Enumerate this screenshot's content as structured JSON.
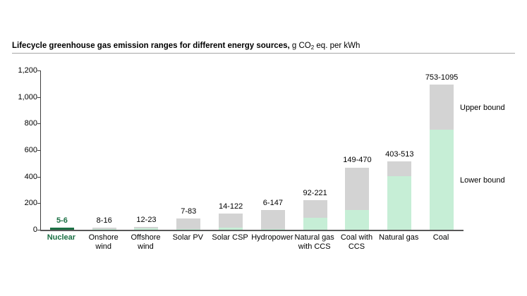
{
  "title_parts": {
    "bold": "Lifecycle greenhouse gas emission ranges for different energy sources,",
    "unit_prefix": " g CO",
    "unit_sub": "2",
    "unit_suffix": " eq. per kWh"
  },
  "chart_data": {
    "type": "bar",
    "stacked": true,
    "title": "Lifecycle greenhouse gas emission ranges for different energy sources, g CO2 eq. per kWh",
    "ylabel": "g CO2 eq. per kWh",
    "xlabel": "",
    "ylim": [
      0,
      1200
    ],
    "ytick_labels": [
      "1,200",
      "1,000",
      "800",
      "600",
      "400",
      "200",
      "0"
    ],
    "grid": false,
    "legend_position": "right-annotations",
    "categories": [
      "Nuclear",
      "Onshore wind",
      "Offshore wind",
      "Solar PV",
      "Solar CSP",
      "Hydropower",
      "Natural gas with CCS",
      "Coal with CCS",
      "Natural gas",
      "Coal"
    ],
    "series": [
      {
        "name": "Lower bound",
        "values": [
          5,
          8,
          12,
          7,
          14,
          6,
          92,
          149,
          403,
          753
        ]
      },
      {
        "name": "Upper bound",
        "values": [
          6,
          16,
          23,
          83,
          122,
          147,
          221,
          470,
          513,
          1095
        ]
      }
    ],
    "value_labels": [
      "5-6",
      "8-16",
      "12-23",
      "7-83",
      "14-122",
      "6-147",
      "92-221",
      "149-470",
      "403-513",
      "753-1095"
    ],
    "label_lines": [
      [
        "Nuclear"
      ],
      [
        "Onshore",
        "wind"
      ],
      [
        "Offshore",
        "wind"
      ],
      [
        "Solar PV"
      ],
      [
        "Solar CSP"
      ],
      [
        "Hydropower"
      ],
      [
        "Natural gas",
        "with CCS"
      ],
      [
        "Coal with",
        "CCS"
      ],
      [
        "Natural gas"
      ],
      [
        "Coal"
      ]
    ],
    "highlight_index": 0,
    "annotations": {
      "upper": "Upper bound",
      "lower": "Lower bound"
    },
    "colors": {
      "lower_bound_fill": "#c6eed6",
      "upper_bound_fill": "#d3d3d3",
      "highlight_fill": "#1b7044",
      "highlight_text": "#1b7044",
      "axis": "#404040",
      "x_axis_line": "#595959",
      "title_rule": "#a6a6a6"
    }
  }
}
